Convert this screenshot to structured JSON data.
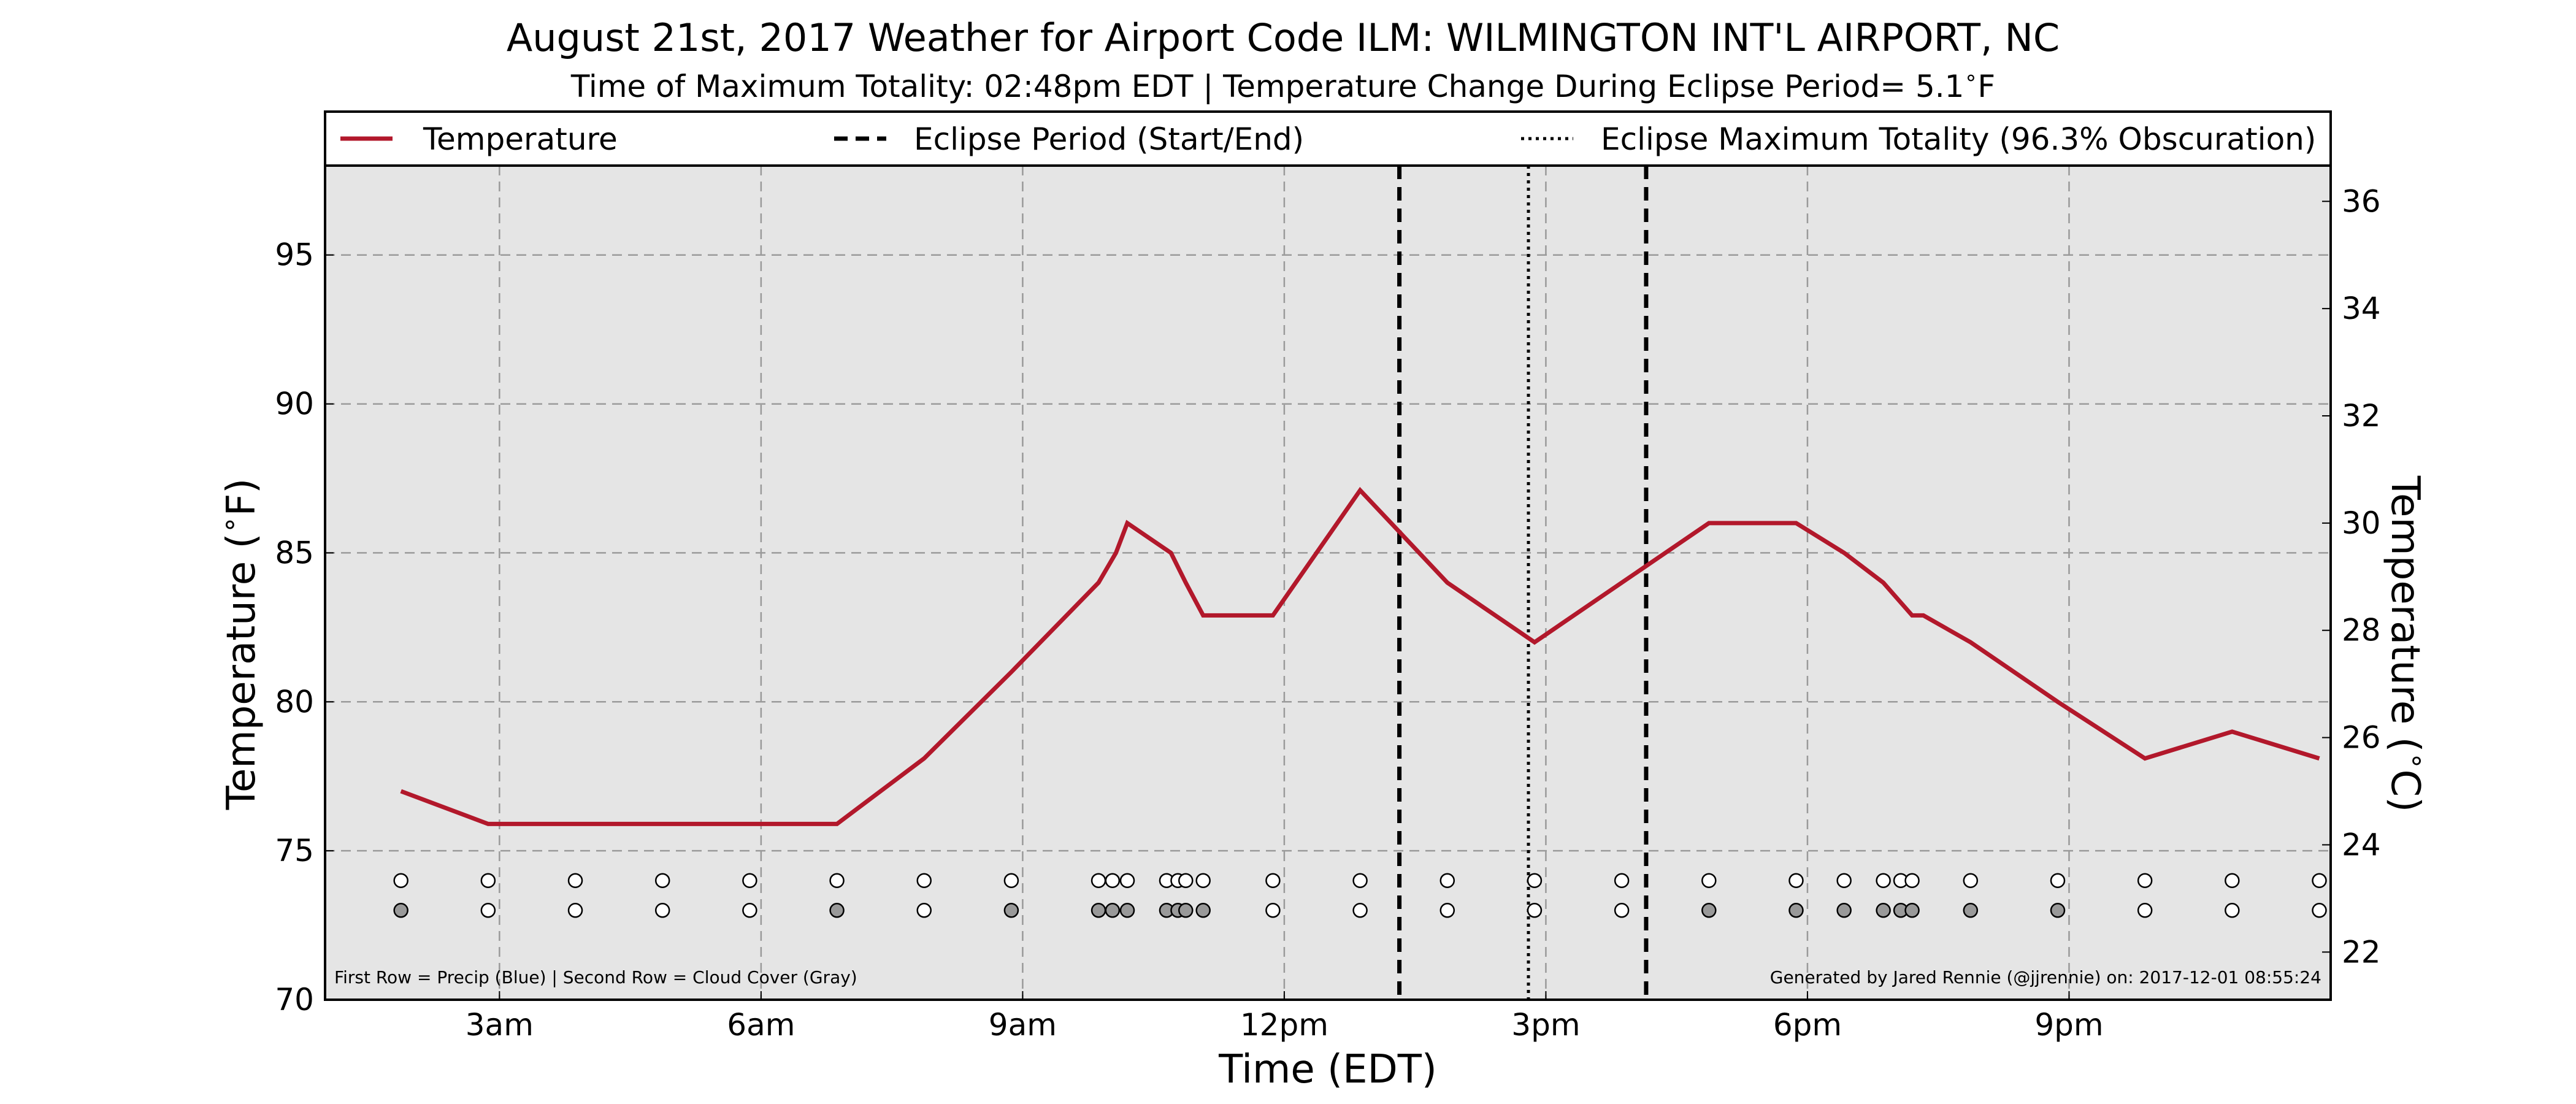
{
  "chart_data": {
    "type": "line",
    "title": "August 21st, 2017 Weather for Airport Code ILM: WILMINGTON INT'L AIRPORT, NC",
    "subtitle": "Time of Maximum Totality: 02:48pm EDT | Temperature Change During Eclipse Period= 5.1$^\\circ$F",
    "xlabel": "Time (EDT)",
    "ylabel": "Temperature ($^\\circ$F)",
    "ylabel_right": "Temperature ($^\\circ$C)",
    "xlim": [
      1.0,
      24.0
    ],
    "ylim": [
      70,
      98
    ],
    "ylim_right_c": [
      21.11,
      36.67
    ],
    "x_ticks": [
      {
        "x": 3,
        "label": "3am"
      },
      {
        "x": 6,
        "label": "6am"
      },
      {
        "x": 9,
        "label": "9am"
      },
      {
        "x": 12,
        "label": "12pm"
      },
      {
        "x": 15,
        "label": "3pm"
      },
      {
        "x": 18,
        "label": "6pm"
      },
      {
        "x": 21,
        "label": "9pm"
      }
    ],
    "y_ticks": [
      70,
      75,
      80,
      85,
      90,
      95
    ],
    "y_ticks_right": [
      22,
      24,
      26,
      28,
      30,
      32,
      34,
      36
    ],
    "grid": true,
    "legend_position": "top",
    "legend": [
      {
        "label": "Temperature",
        "style": "solid",
        "color": "#b2182b"
      },
      {
        "label": "Eclipse Period (Start/End)",
        "style": "dashed",
        "color": "#000000"
      },
      {
        "label": "Eclipse Maximum Totality (96.3% Obscuration)",
        "style": "dotted",
        "color": "#000000"
      }
    ],
    "series": [
      {
        "name": "Temperature",
        "color": "#b2182b",
        "x": [
          1.87,
          2.87,
          3.87,
          4.87,
          5.87,
          6.87,
          7.87,
          8.87,
          9.87,
          10.07,
          10.2,
          10.7,
          10.87,
          11.07,
          11.87,
          12.87,
          13.87,
          14.87,
          15.87,
          16.87,
          17.87,
          18.42,
          18.87,
          19.2,
          19.33,
          19.87,
          20.87,
          21.87,
          22.87,
          23.87
        ],
        "y": [
          77.0,
          75.9,
          75.9,
          75.9,
          75.9,
          75.9,
          78.1,
          81.0,
          84.0,
          85.0,
          86.0,
          85.0,
          84.0,
          82.9,
          82.9,
          87.1,
          84.0,
          82.0,
          84.0,
          86.0,
          86.0,
          85.0,
          84.0,
          82.9,
          82.9,
          82.0,
          80.0,
          78.1,
          79.0,
          78.1
        ]
      }
    ],
    "vlines": [
      {
        "x": 13.32,
        "style": "dashed",
        "label": "Eclipse start"
      },
      {
        "x": 14.8,
        "style": "dotted",
        "label": "Maximum totality"
      },
      {
        "x": 16.15,
        "style": "dashed",
        "label": "Eclipse end"
      }
    ],
    "observations": {
      "precip_y": 74.0,
      "cloud_y": 73.0,
      "x": [
        1.87,
        2.87,
        3.87,
        4.87,
        5.87,
        6.87,
        7.87,
        8.87,
        9.87,
        10.03,
        10.2,
        10.65,
        10.78,
        10.87,
        11.07,
        11.87,
        12.87,
        13.87,
        14.87,
        15.87,
        16.87,
        17.87,
        18.42,
        18.87,
        19.07,
        19.2,
        19.87,
        20.87,
        21.87,
        22.87,
        23.87
      ],
      "precip_color": [
        "#ffffff",
        "#ffffff",
        "#ffffff",
        "#ffffff",
        "#ffffff",
        "#ffffff",
        "#ffffff",
        "#ffffff",
        "#ffffff",
        "#ffffff",
        "#ffffff",
        "#ffffff",
        "#ffffff",
        "#ffffff",
        "#ffffff",
        "#ffffff",
        "#ffffff",
        "#ffffff",
        "#ffffff",
        "#ffffff",
        "#ffffff",
        "#ffffff",
        "#ffffff",
        "#ffffff",
        "#ffffff",
        "#ffffff",
        "#ffffff",
        "#ffffff",
        "#ffffff",
        "#ffffff",
        "#ffffff"
      ],
      "cloud_color": [
        "#999999",
        "#ffffff",
        "#ffffff",
        "#ffffff",
        "#ffffff",
        "#999999",
        "#ffffff",
        "#999999",
        "#999999",
        "#999999",
        "#999999",
        "#999999",
        "#999999",
        "#999999",
        "#999999",
        "#ffffff",
        "#ffffff",
        "#ffffff",
        "#ffffff",
        "#ffffff",
        "#999999",
        "#999999",
        "#999999",
        "#999999",
        "#999999",
        "#999999",
        "#999999",
        "#999999",
        "#ffffff",
        "#ffffff",
        "#ffffff"
      ]
    },
    "notes": {
      "left": "First Row = Precip (Blue) | Second Row = Cloud Cover (Gray)",
      "right": "Generated by Jared Rennie (@jjrennie) on: 2017-12-01 08:55:24"
    }
  }
}
